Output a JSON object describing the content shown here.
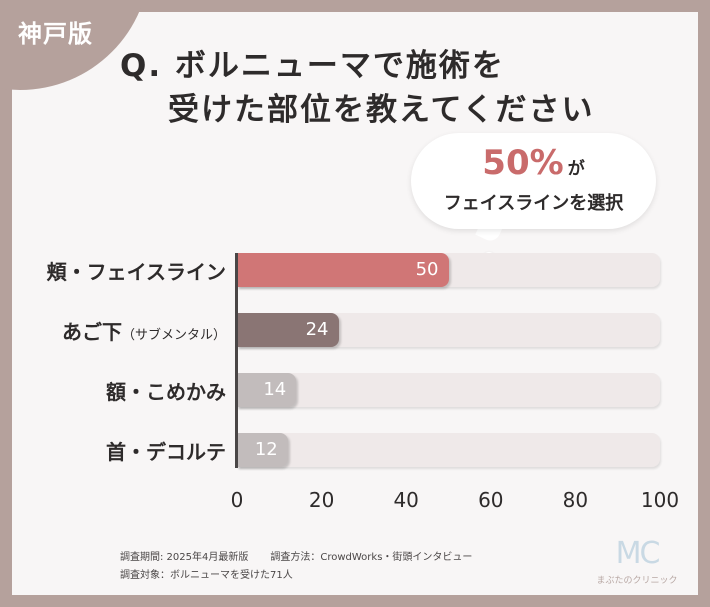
{
  "badge": "神戸版",
  "title": {
    "line1": "Q. ボルニューマで施術を",
    "line2": "受けた部位を教えてください"
  },
  "callout": {
    "percent": "50%",
    "particle": "が",
    "text": "フェイスラインを選択"
  },
  "chart_data": {
    "type": "bar",
    "orientation": "horizontal",
    "categories": [
      "頬・フェイスライン",
      "あご下",
      "額・こめかみ",
      "首・デコルテ"
    ],
    "category_notes": [
      "",
      "（サブメンタル）",
      "",
      ""
    ],
    "values": [
      50,
      24,
      14,
      12
    ],
    "xlim": [
      0,
      100
    ],
    "xticks": [
      0,
      20,
      40,
      60,
      80,
      100
    ],
    "colors": [
      "#d07676",
      "#8a7574",
      "#c2bcbc",
      "#c2bcbc"
    ],
    "track_color": "#efe9e9"
  },
  "footer": {
    "period": "調査期間: 2025年4月最新版",
    "method": "調査方法：CrowdWorks・街頭インタビュー",
    "target": "調査対象：ボルニューマを受けた71人"
  },
  "logo": {
    "mark": "MC",
    "name": "まぶたのクリニック"
  }
}
